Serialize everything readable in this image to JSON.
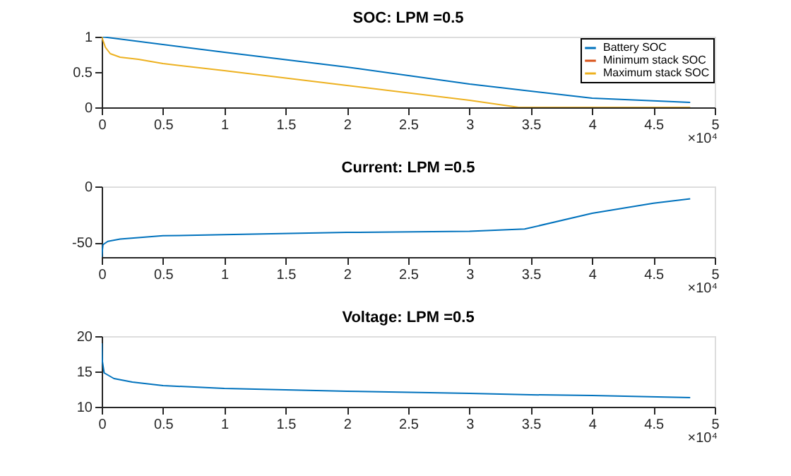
{
  "chart_data": [
    {
      "type": "line",
      "title": "SOC: LPM =0.5",
      "xlim": [
        0,
        5
      ],
      "ylim": [
        0,
        1
      ],
      "yticks": [
        0,
        0.5,
        1
      ],
      "xticks": [
        0,
        0.5,
        1,
        1.5,
        2,
        2.5,
        3,
        3.5,
        4,
        4.5,
        5
      ],
      "annotations": [
        "×10⁴"
      ],
      "legend": "top right",
      "grid": false,
      "series": [
        {
          "name": "Battery SOC",
          "color": "#0072bd",
          "x": [
            0,
            1,
            2,
            3,
            4,
            4.8
          ],
          "values": [
            1,
            0.78,
            0.57,
            0.33,
            0.13,
            0.07
          ]
        },
        {
          "name": "Minimum stack SOC",
          "color": "#d95319"
        },
        {
          "name": "Maximum stack SOC",
          "color": "#edb120",
          "x": [
            0,
            0.03,
            0.07,
            0.15,
            0.3,
            0.5,
            1,
            2,
            3,
            3.4,
            4.8
          ],
          "values": [
            1,
            0.85,
            0.76,
            0.71,
            0.68,
            0.62,
            0.52,
            0.31,
            0.1,
            0,
            0
          ]
        }
      ]
    },
    {
      "type": "line",
      "title": "Current: LPM =0.5",
      "xlim": [
        0,
        5
      ],
      "ylim": [
        -63,
        0
      ],
      "yticks": [
        -50,
        0
      ],
      "xticks": [
        0,
        0.5,
        1,
        1.5,
        2,
        2.5,
        3,
        3.5,
        4,
        4.5,
        5
      ],
      "annotations": [
        "×10⁴"
      ],
      "grid": false,
      "series": [
        {
          "color": "#0072bd",
          "x": [
            0,
            0.01,
            0.05,
            0.15,
            0.5,
            1,
            2,
            3,
            3.45,
            4,
            4.5,
            4.8
          ],
          "values": [
            -63,
            -52,
            -49,
            -47,
            -44,
            -43,
            -41,
            -40,
            -38,
            -24,
            -15,
            -11
          ]
        }
      ]
    },
    {
      "type": "line",
      "title": "Voltage: LPM =0.5",
      "xlim": [
        0,
        5
      ],
      "ylim": [
        10,
        20
      ],
      "yticks": [
        10,
        15,
        20
      ],
      "xticks": [
        0,
        0.5,
        1,
        1.5,
        2,
        2.5,
        3,
        3.5,
        4,
        4.5,
        5
      ],
      "annotations": [
        "×10⁴"
      ],
      "grid": false,
      "series": [
        {
          "color": "#0072bd",
          "x": [
            0,
            0.005,
            0.02,
            0.1,
            0.25,
            0.5,
            1,
            2,
            3,
            3.5,
            4,
            4.8
          ],
          "values": [
            19,
            16.5,
            14.8,
            14,
            13.5,
            13,
            12.6,
            12.2,
            11.9,
            11.7,
            11.6,
            11.3
          ]
        }
      ]
    }
  ]
}
